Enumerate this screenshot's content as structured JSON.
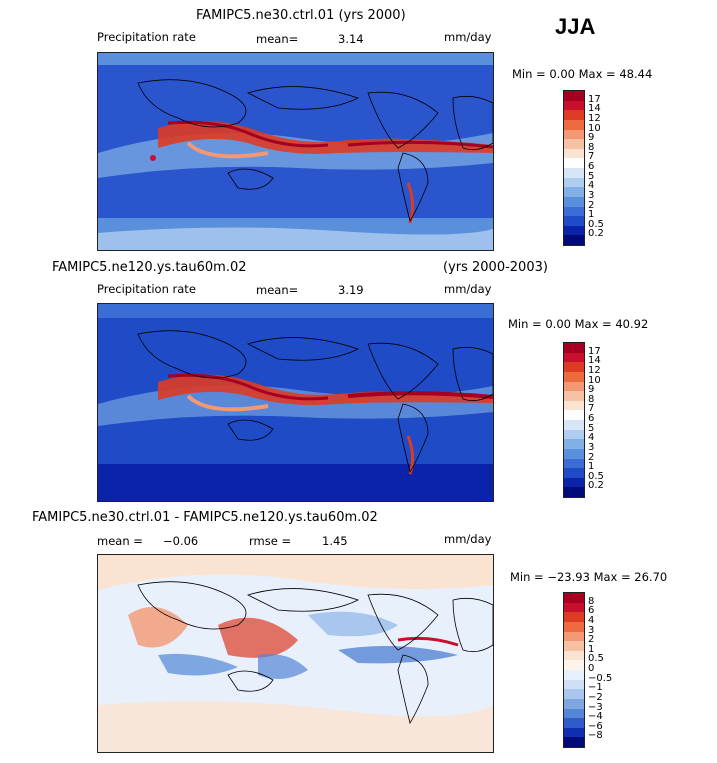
{
  "season": "JJA",
  "panels": [
    {
      "title": "FAMIPC5.ne30.ctrl.01 (yrs 2000)",
      "title_right": "",
      "variable": "Precipitation rate",
      "stat1_label": "mean=",
      "stat1_value": "3.14",
      "stat2_label": "",
      "stat2_value": "",
      "units": "mm/day",
      "minmax": "Min =   0.00 Max =  48.44",
      "colorbar_labels": [
        "17",
        "14",
        "12",
        "10",
        "9",
        "8",
        "7",
        "6",
        "5",
        "4",
        "3",
        "2",
        "1",
        "0.5",
        "0.2"
      ],
      "colorbar_colors": [
        "#a50021",
        "#c8102e",
        "#dd3b23",
        "#ed6a3e",
        "#f39873",
        "#f7c2a4",
        "#fbe3d2",
        "#ffffff",
        "#d6e6f7",
        "#aecdf0",
        "#82b0e6",
        "#5a8fdb",
        "#3a6ed4",
        "#1f4bc6",
        "#0a23a8",
        "#000a78"
      ]
    },
    {
      "title": "FAMIPC5.ne120.ys.tau60m.02",
      "title_right": "(yrs 2000-2003)",
      "variable": "Precipitation rate",
      "stat1_label": "mean=",
      "stat1_value": "3.19",
      "stat2_label": "",
      "stat2_value": "",
      "units": "mm/day",
      "minmax": "Min =   0.00 Max =  40.92",
      "colorbar_labels": [
        "17",
        "14",
        "12",
        "10",
        "9",
        "8",
        "7",
        "6",
        "5",
        "4",
        "3",
        "2",
        "1",
        "0.5",
        "0.2"
      ],
      "colorbar_colors": [
        "#a50021",
        "#c8102e",
        "#dd3b23",
        "#ed6a3e",
        "#f39873",
        "#f7c2a4",
        "#fbe3d2",
        "#ffffff",
        "#d6e6f7",
        "#aecdf0",
        "#82b0e6",
        "#5a8fdb",
        "#3a6ed4",
        "#1f4bc6",
        "#0a23a8",
        "#000a78"
      ]
    },
    {
      "title": "FAMIPC5.ne30.ctrl.01 - FAMIPC5.ne120.ys.tau60m.02",
      "title_right": "",
      "variable": "",
      "stat1_label": "mean =",
      "stat1_value": "−0.06",
      "stat2_label": "rmse =",
      "stat2_value": "1.45",
      "units": "mm/day",
      "minmax": "Min = −23.93 Max =  26.70",
      "colorbar_labels": [
        "8",
        "6",
        "4",
        "3",
        "2",
        "1",
        "0.5",
        "0",
        "−0.5",
        "−1",
        "−2",
        "−3",
        "−4",
        "−6",
        "−8"
      ],
      "colorbar_colors": [
        "#a50021",
        "#c8102e",
        "#dd3b23",
        "#ed6a3e",
        "#f39873",
        "#f7c2a4",
        "#fbe3d2",
        "#fff4ec",
        "#e8f0fb",
        "#cfe0f5",
        "#a9c6ee",
        "#7ea7e2",
        "#5585d6",
        "#2f5cc8",
        "#0f2fae",
        "#000a78"
      ]
    }
  ]
}
